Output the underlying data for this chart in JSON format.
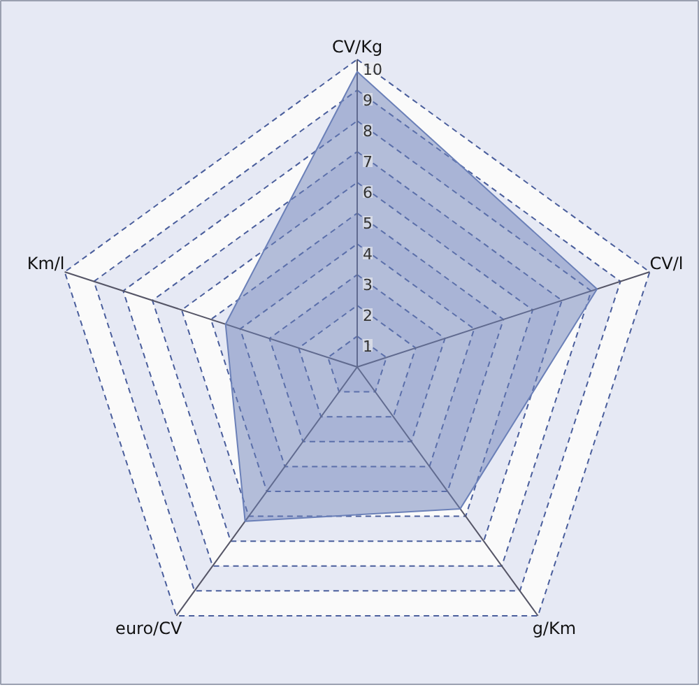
{
  "chart_data": {
    "type": "radar",
    "categories": [
      "CV/Kg",
      "CV/l",
      "g/Km",
      "euro/CV",
      "Km/l"
    ],
    "series": [
      {
        "color": "#6b80b8",
        "values": [
          9.6,
          8.2,
          5.7,
          6.2,
          4.5
        ]
      }
    ],
    "ylim": [
      0,
      10
    ],
    "yticks": [
      1,
      2,
      3,
      4,
      5,
      6,
      7,
      8,
      9,
      10
    ],
    "grid": true
  }
}
